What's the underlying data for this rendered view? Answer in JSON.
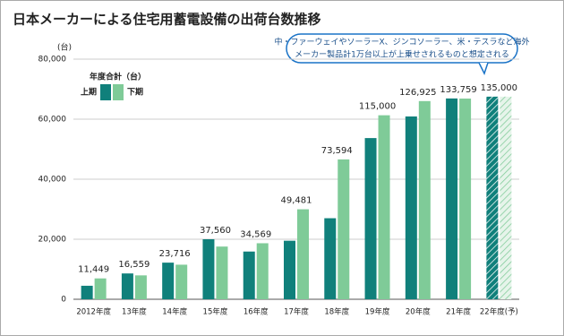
{
  "chart_data": {
    "type": "bar",
    "title": "日本メーカーによる住宅用蓄電設備の出荷台数推移",
    "y_unit": "(台)",
    "legend_title": "年度合計（台）",
    "annotation": [
      "中・ファーウェイやソーラーX、ジンコソーラー、米・テスラなど海外",
      "メーカー製品計1万台以上が上乗せされるものと想定される"
    ],
    "categories": [
      "2012年度",
      "13年度",
      "14年度",
      "15年度",
      "16年度",
      "17年度",
      "18年度",
      "19年度",
      "20年度",
      "21年度",
      "22年度(予)"
    ],
    "series": [
      {
        "name": "上期",
        "color": "#10807b",
        "values": [
          4500,
          8600,
          12200,
          20000,
          15900,
          19500,
          27000,
          53700,
          60900,
          66900,
          67500
        ]
      },
      {
        "name": "下期",
        "color": "#7fcb98",
        "values": [
          6949,
          7959,
          11516,
          17560,
          18669,
          29981,
          46594,
          61300,
          66025,
          66859,
          67500
        ]
      }
    ],
    "totals": {
      "values": [
        11449,
        16559,
        23716,
        37560,
        34569,
        49481,
        73594,
        115000,
        126925,
        133759,
        135000
      ],
      "value_labels": [
        "11,449",
        "16,559",
        "23,716",
        "37,560",
        "34,569",
        "49,481",
        "73,594",
        "115,000",
        "126,925",
        "133,759",
        "135,000"
      ]
    },
    "forecast_from_index": 10,
    "ylim": [
      0,
      80000
    ],
    "yticks": [
      0,
      {
        "value": 20000,
        "label": "20,000"
      },
      {
        "value": 40000,
        "label": "40,000"
      },
      {
        "value": 60000,
        "label": "60,000"
      },
      {
        "value": 80000,
        "label": "80,000"
      }
    ],
    "grid": true
  }
}
